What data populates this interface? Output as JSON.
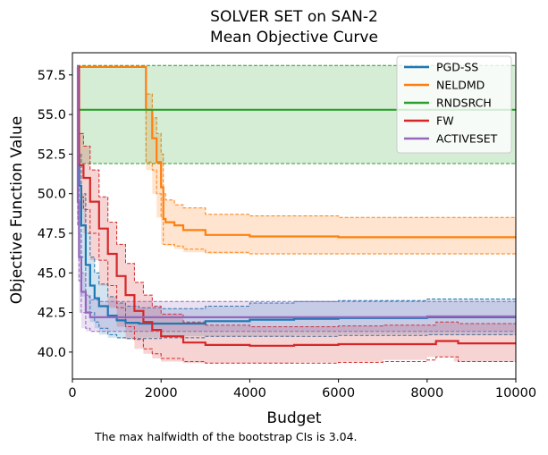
{
  "figure": {
    "title_line1": "SOLVER SET on SAN-2",
    "title_line2": "Mean Objective Curve",
    "footnote": "The max halfwidth of the bootstrap CIs is 3.04."
  },
  "chart_data": {
    "type": "line",
    "title": "SOLVER SET on SAN-2 Mean Objective Curve",
    "xlabel": "Budget",
    "ylabel": "Objective Function Value",
    "xlim": [
      0,
      10000
    ],
    "ylim": [
      38.3,
      58.9
    ],
    "xticks": [
      0,
      2000,
      4000,
      6000,
      8000,
      10000
    ],
    "xtick_labels": [
      "0",
      "2000",
      "4000",
      "6000",
      "8000",
      "10000"
    ],
    "yticks": [
      40.0,
      42.5,
      45.0,
      47.5,
      50.0,
      52.5,
      55.0,
      57.5
    ],
    "ytick_labels": [
      "40.0",
      "42.5",
      "45.0",
      "47.5",
      "50.0",
      "52.5",
      "55.0",
      "57.5"
    ],
    "grid": false,
    "legend_position": "top-right",
    "series": [
      {
        "name": "PGD-SS",
        "color": "#1f77b4",
        "x": [
          100,
          150,
          200,
          300,
          400,
          500,
          600,
          800,
          1000,
          1200,
          1500,
          2000,
          3000,
          4000,
          5000,
          6000,
          8000,
          10000
        ],
        "y": [
          58.0,
          50.5,
          48.0,
          45.5,
          44.2,
          43.4,
          42.9,
          42.3,
          42.0,
          41.85,
          41.8,
          41.8,
          41.95,
          42.05,
          42.1,
          42.15,
          42.2,
          42.3
        ],
        "lower": [
          58.0,
          48.5,
          46.0,
          43.5,
          42.5,
          41.9,
          41.5,
          41.1,
          40.9,
          40.85,
          40.85,
          40.9,
          41.0,
          41.0,
          41.0,
          41.05,
          41.1,
          41.1
        ],
        "upper": [
          58.0,
          52.5,
          50.0,
          47.5,
          46.0,
          45.0,
          44.3,
          43.5,
          43.1,
          42.9,
          42.8,
          42.75,
          42.9,
          43.1,
          43.2,
          43.25,
          43.35,
          43.45
        ]
      },
      {
        "name": "NELDMD",
        "color": "#ff7f0e",
        "x": [
          100,
          1650,
          1660,
          1800,
          1900,
          2000,
          2050,
          2100,
          2300,
          2500,
          3000,
          4000,
          6000,
          8000,
          10000
        ],
        "y": [
          58.0,
          58.0,
          55.3,
          53.5,
          52.0,
          50.4,
          48.4,
          48.2,
          48.0,
          47.7,
          47.4,
          47.3,
          47.25,
          47.25,
          47.25
        ],
        "lower": [
          58.0,
          58.0,
          52.0,
          51.5,
          50.0,
          48.5,
          46.8,
          46.8,
          46.7,
          46.5,
          46.3,
          46.2,
          46.2,
          46.2,
          46.2
        ],
        "upper": [
          58.0,
          58.0,
          56.3,
          54.8,
          53.8,
          52.5,
          50.0,
          49.6,
          49.3,
          49.1,
          48.7,
          48.6,
          48.5,
          48.5,
          48.5
        ]
      },
      {
        "name": "RNDSRCH",
        "color": "#2ca02c",
        "x": [
          100,
          10000
        ],
        "y": [
          55.3,
          55.3
        ],
        "lower": [
          51.9,
          51.9
        ],
        "upper": [
          58.1,
          58.1
        ]
      },
      {
        "name": "FW",
        "color": "#d62728",
        "x": [
          100,
          150,
          250,
          400,
          600,
          800,
          1000,
          1200,
          1400,
          1600,
          1800,
          2000,
          2500,
          3000,
          4000,
          5000,
          6000,
          7000,
          8000,
          8200,
          8600,
          8700,
          9000,
          10000
        ],
        "y": [
          58.0,
          51.8,
          51.0,
          49.5,
          47.8,
          46.2,
          44.8,
          43.6,
          42.6,
          41.9,
          41.4,
          41.0,
          40.6,
          40.45,
          40.4,
          40.45,
          40.5,
          40.5,
          40.5,
          40.7,
          40.7,
          40.55,
          40.55,
          40.55
        ],
        "lower": [
          58.0,
          49.8,
          49.0,
          47.5,
          45.8,
          44.2,
          42.8,
          41.6,
          40.8,
          40.2,
          39.9,
          39.6,
          39.4,
          39.3,
          39.3,
          39.3,
          39.35,
          39.4,
          39.5,
          39.7,
          39.7,
          39.4,
          39.4,
          39.4
        ],
        "upper": [
          58.0,
          53.8,
          53.0,
          51.5,
          49.8,
          48.2,
          46.8,
          45.6,
          44.4,
          43.6,
          42.9,
          42.4,
          41.9,
          41.7,
          41.6,
          41.6,
          41.65,
          41.7,
          41.7,
          41.9,
          41.9,
          41.8,
          41.8,
          41.8
        ]
      },
      {
        "name": "ACTIVESET",
        "color": "#9467bd",
        "x": [
          100,
          120,
          150,
          200,
          300,
          400,
          600,
          800,
          1000,
          2000,
          4000,
          6000,
          8000,
          10000
        ],
        "y": [
          58.0,
          49.5,
          46.0,
          43.8,
          42.5,
          42.2,
          42.2,
          42.2,
          42.2,
          42.2,
          42.2,
          42.2,
          42.25,
          42.3
        ],
        "lower": [
          58.0,
          48.0,
          44.5,
          42.5,
          41.5,
          41.3,
          41.3,
          41.3,
          41.3,
          41.3,
          41.3,
          41.3,
          41.3,
          41.3
        ],
        "upper": [
          58.0,
          51.0,
          47.5,
          45.0,
          43.6,
          43.3,
          43.2,
          43.2,
          43.2,
          43.2,
          43.2,
          43.2,
          43.2,
          43.3
        ]
      }
    ]
  }
}
